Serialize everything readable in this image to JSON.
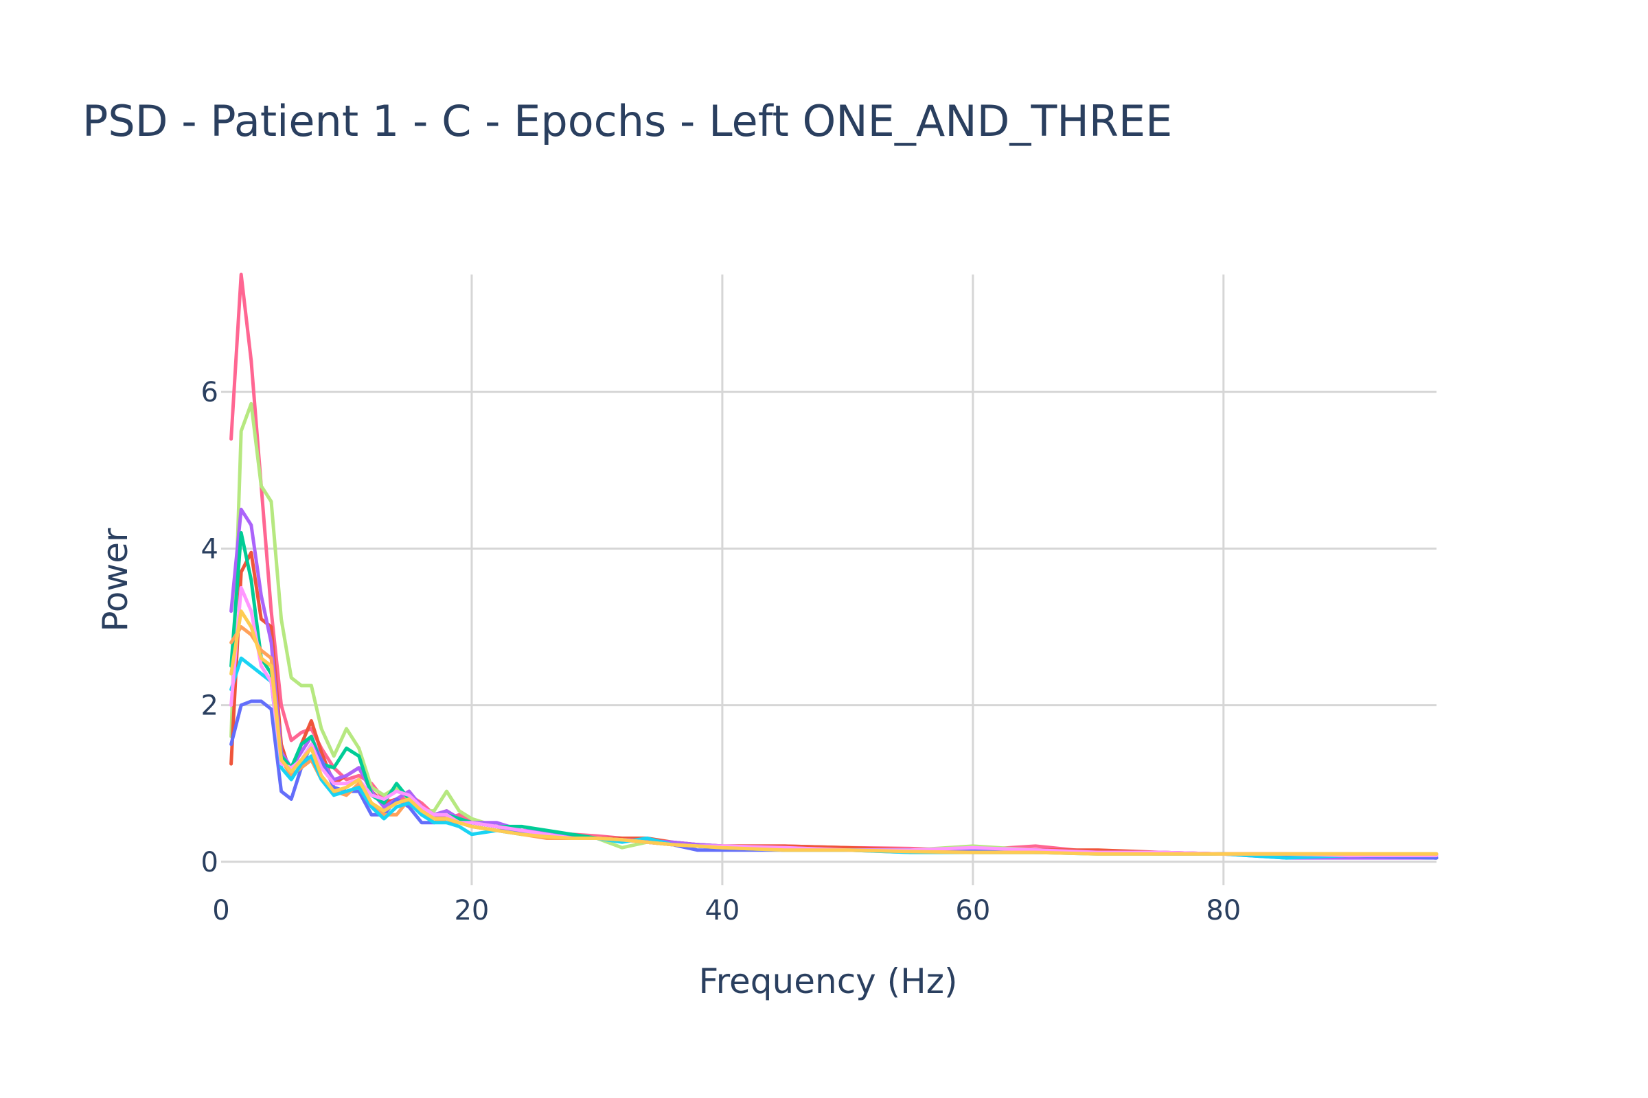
{
  "chart_data": {
    "type": "line",
    "title": "PSD - Patient 1 - C - Epochs - Left ONE_AND_THREE",
    "xlabel": "Frequency (Hz)",
    "ylabel": "Power",
    "xlim": [
      0,
      97
    ],
    "ylim": [
      -0.3,
      7.5
    ],
    "x_ticks": [
      0,
      20,
      40,
      60,
      80
    ],
    "y_ticks": [
      0,
      2,
      4,
      6
    ],
    "grid": true,
    "legend": "none",
    "colors": [
      "#FF6692",
      "#B6E880",
      "#EF553B",
      "#AB63FA",
      "#00CC96",
      "#636EFA",
      "#FFA15A",
      "#19D3F3",
      "#FF97FF",
      "#FECB52"
    ],
    "x": [
      0.8,
      1.6,
      2.4,
      3.2,
      4.0,
      4.8,
      5.6,
      6.4,
      7.2,
      8.0,
      9.0,
      10.0,
      11.0,
      12.0,
      13.0,
      14.0,
      15.0,
      16.0,
      17.0,
      18.0,
      19.0,
      20.0,
      22.0,
      24.0,
      26.0,
      28.0,
      30.0,
      32.0,
      34.0,
      36.0,
      38.0,
      40.0,
      45.0,
      50.0,
      55.0,
      60.0,
      65.0,
      70.0,
      75.0,
      80.0,
      85.0,
      90.0,
      97.0
    ],
    "series": [
      {
        "values": [
          5.4,
          7.5,
          6.4,
          4.8,
          3.2,
          2.0,
          1.55,
          1.65,
          1.7,
          1.45,
          1.2,
          1.05,
          1.1,
          1.0,
          0.8,
          0.75,
          0.85,
          0.75,
          0.6,
          0.55,
          0.6,
          0.5,
          0.45,
          0.4,
          0.38,
          0.35,
          0.33,
          0.3,
          0.28,
          0.25,
          0.22,
          0.2,
          0.2,
          0.18,
          0.17,
          0.15,
          0.2,
          0.12,
          0.12,
          0.1,
          0.1,
          0.1,
          0.08
        ]
      },
      {
        "values": [
          1.6,
          5.5,
          5.85,
          4.8,
          4.6,
          3.1,
          2.35,
          2.25,
          2.25,
          1.7,
          1.35,
          1.7,
          1.45,
          0.95,
          0.85,
          0.95,
          0.8,
          0.65,
          0.65,
          0.9,
          0.65,
          0.55,
          0.45,
          0.4,
          0.35,
          0.32,
          0.3,
          0.18,
          0.25,
          0.22,
          0.2,
          0.18,
          0.15,
          0.15,
          0.15,
          0.2,
          0.15,
          0.12,
          0.12,
          0.1,
          0.1,
          0.1,
          0.1
        ]
      },
      {
        "values": [
          1.25,
          3.7,
          3.95,
          3.1,
          3.0,
          1.5,
          1.1,
          1.5,
          1.8,
          1.4,
          1.0,
          1.1,
          1.2,
          0.9,
          0.75,
          0.8,
          0.9,
          0.7,
          0.6,
          0.65,
          0.55,
          0.5,
          0.45,
          0.4,
          0.38,
          0.32,
          0.3,
          0.3,
          0.3,
          0.25,
          0.22,
          0.2,
          0.2,
          0.18,
          0.15,
          0.15,
          0.15,
          0.15,
          0.12,
          0.1,
          0.1,
          0.08,
          0.05
        ]
      },
      {
        "values": [
          3.2,
          4.5,
          4.3,
          3.4,
          2.8,
          1.4,
          1.2,
          1.4,
          1.6,
          1.3,
          1.05,
          1.1,
          1.2,
          0.9,
          0.7,
          0.8,
          0.9,
          0.7,
          0.6,
          0.65,
          0.55,
          0.5,
          0.5,
          0.4,
          0.38,
          0.32,
          0.3,
          0.28,
          0.27,
          0.25,
          0.22,
          0.2,
          0.18,
          0.15,
          0.15,
          0.15,
          0.15,
          0.12,
          0.12,
          0.1,
          0.05,
          0.05,
          0.05
        ]
      },
      {
        "values": [
          2.5,
          4.2,
          3.6,
          2.6,
          2.4,
          1.35,
          1.2,
          1.5,
          1.6,
          1.25,
          1.2,
          1.45,
          1.35,
          0.85,
          0.75,
          1.0,
          0.8,
          0.6,
          0.6,
          0.6,
          0.55,
          0.5,
          0.45,
          0.45,
          0.4,
          0.35,
          0.3,
          0.28,
          0.25,
          0.22,
          0.2,
          0.18,
          0.15,
          0.15,
          0.15,
          0.12,
          0.12,
          0.12,
          0.1,
          0.1,
          0.08,
          0.08,
          0.05
        ]
      },
      {
        "values": [
          1.5,
          2.0,
          2.05,
          2.05,
          1.95,
          0.9,
          0.8,
          1.2,
          1.5,
          1.3,
          0.95,
          0.9,
          0.9,
          0.6,
          0.6,
          0.8,
          0.7,
          0.5,
          0.5,
          0.55,
          0.5,
          0.45,
          0.4,
          0.38,
          0.35,
          0.3,
          0.3,
          0.28,
          0.25,
          0.22,
          0.15,
          0.15,
          0.15,
          0.15,
          0.15,
          0.15,
          0.12,
          0.12,
          0.1,
          0.1,
          0.08,
          0.08,
          0.05
        ]
      },
      {
        "values": [
          2.8,
          3.0,
          2.9,
          2.7,
          2.6,
          1.3,
          1.1,
          1.2,
          1.3,
          1.05,
          0.9,
          0.85,
          1.0,
          0.75,
          0.6,
          0.6,
          0.8,
          0.65,
          0.55,
          0.5,
          0.5,
          0.45,
          0.4,
          0.35,
          0.3,
          0.3,
          0.3,
          0.28,
          0.25,
          0.22,
          0.2,
          0.18,
          0.15,
          0.15,
          0.12,
          0.12,
          0.12,
          0.12,
          0.1,
          0.1,
          0.1,
          0.1,
          0.1
        ]
      },
      {
        "values": [
          2.2,
          2.6,
          2.5,
          2.4,
          2.3,
          1.2,
          1.05,
          1.25,
          1.35,
          1.05,
          0.85,
          0.9,
          0.95,
          0.7,
          0.55,
          0.7,
          0.75,
          0.6,
          0.5,
          0.5,
          0.45,
          0.35,
          0.4,
          0.35,
          0.35,
          0.3,
          0.3,
          0.25,
          0.3,
          0.22,
          0.2,
          0.18,
          0.15,
          0.15,
          0.12,
          0.12,
          0.12,
          0.1,
          0.1,
          0.1,
          0.05,
          0.08,
          0.08
        ]
      },
      {
        "values": [
          2.0,
          3.5,
          3.2,
          2.5,
          2.3,
          1.25,
          1.2,
          1.3,
          1.5,
          1.2,
          1.0,
          1.0,
          1.05,
          0.85,
          0.8,
          0.9,
          0.85,
          0.7,
          0.6,
          0.6,
          0.5,
          0.5,
          0.45,
          0.4,
          0.35,
          0.3,
          0.3,
          0.28,
          0.25,
          0.22,
          0.2,
          0.2,
          0.18,
          0.15,
          0.15,
          0.18,
          0.15,
          0.12,
          0.12,
          0.1,
          0.1,
          0.08,
          0.08
        ]
      },
      {
        "values": [
          2.4,
          3.2,
          3.0,
          2.6,
          2.5,
          1.3,
          1.15,
          1.3,
          1.45,
          1.1,
          0.9,
          0.95,
          1.05,
          0.75,
          0.65,
          0.75,
          0.8,
          0.65,
          0.55,
          0.55,
          0.5,
          0.45,
          0.4,
          0.35,
          0.32,
          0.3,
          0.3,
          0.28,
          0.25,
          0.22,
          0.2,
          0.18,
          0.15,
          0.15,
          0.13,
          0.12,
          0.12,
          0.1,
          0.1,
          0.1,
          0.1,
          0.1,
          0.1
        ]
      }
    ]
  }
}
